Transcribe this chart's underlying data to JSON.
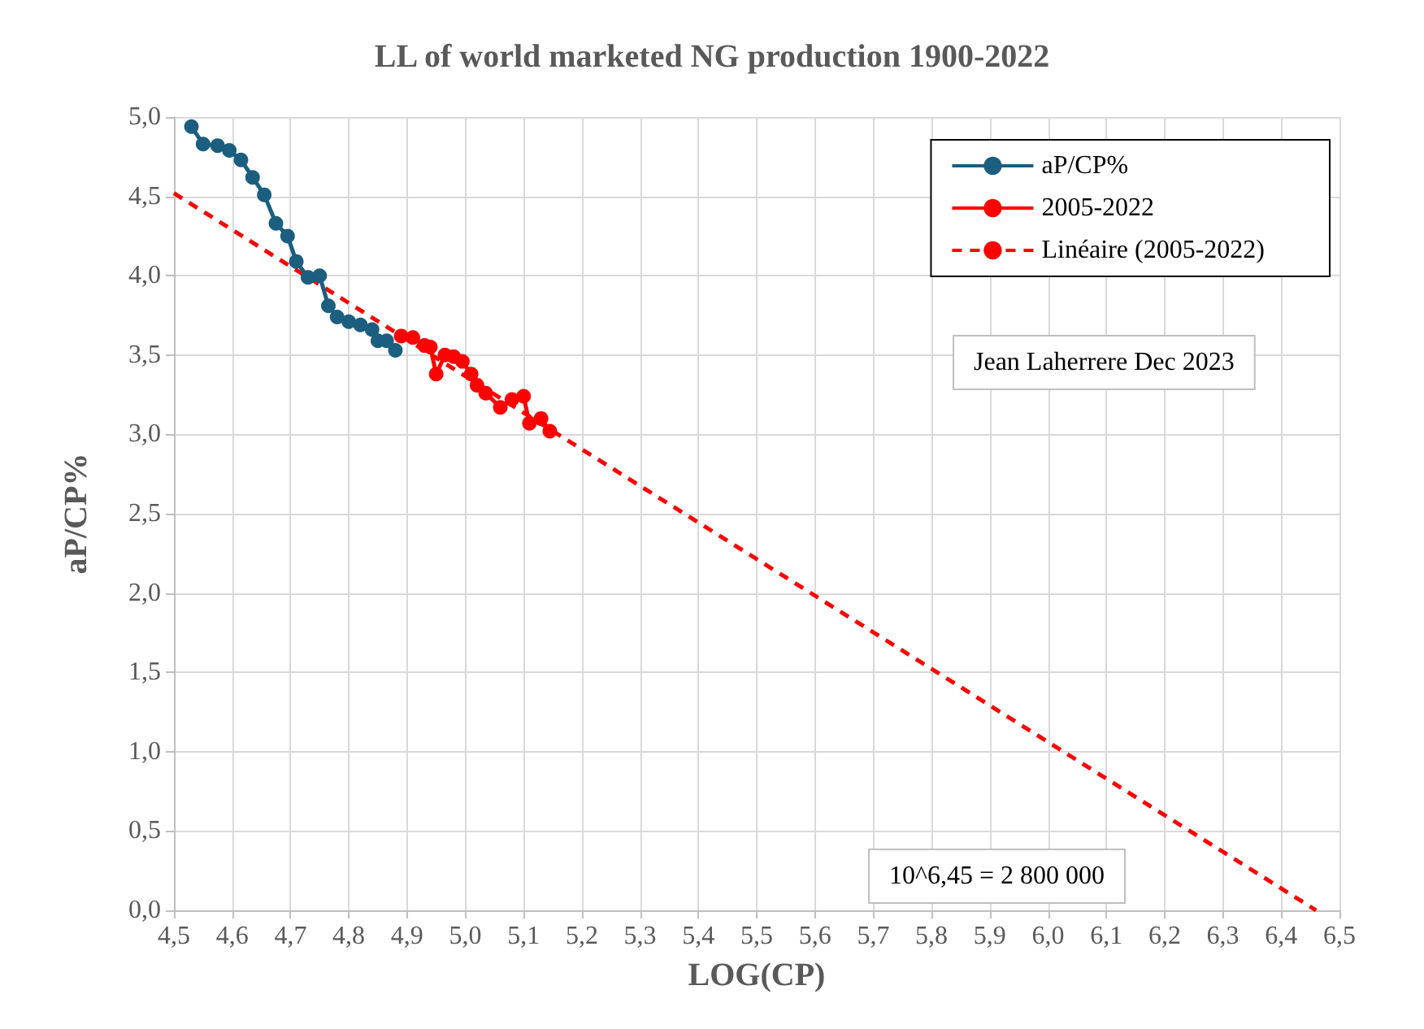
{
  "chart_data": {
    "type": "line",
    "title": "LL of world marketed NG production 1900-2022",
    "xlabel": "LOG(CP)",
    "ylabel": "aP/CP%",
    "xlim": [
      4.5,
      6.5
    ],
    "ylim": [
      0,
      5
    ],
    "xticks": [
      {
        "value": 4.5,
        "label": "4,5"
      },
      {
        "value": 4.6,
        "label": "4,6"
      },
      {
        "value": 4.7,
        "label": "4,7"
      },
      {
        "value": 4.8,
        "label": "4,8"
      },
      {
        "value": 4.9,
        "label": "4,9"
      },
      {
        "value": 5.0,
        "label": "5,0"
      },
      {
        "value": 5.1,
        "label": "5,1"
      },
      {
        "value": 5.2,
        "label": "5,2"
      },
      {
        "value": 5.3,
        "label": "5,3"
      },
      {
        "value": 5.4,
        "label": "5,4"
      },
      {
        "value": 5.5,
        "label": "5,5"
      },
      {
        "value": 5.6,
        "label": "5,6"
      },
      {
        "value": 5.7,
        "label": "5,7"
      },
      {
        "value": 5.8,
        "label": "5,8"
      },
      {
        "value": 5.9,
        "label": "5,9"
      },
      {
        "value": 6.0,
        "label": "6,0"
      },
      {
        "value": 6.1,
        "label": "6,1"
      },
      {
        "value": 6.2,
        "label": "6,2"
      },
      {
        "value": 6.3,
        "label": "6,3"
      },
      {
        "value": 6.4,
        "label": "6,4"
      },
      {
        "value": 6.5,
        "label": "6,5"
      }
    ],
    "yticks": [
      {
        "value": 0,
        "label": "0,0"
      },
      {
        "value": 0.5,
        "label": "0,5"
      },
      {
        "value": 1.0,
        "label": "1,0"
      },
      {
        "value": 1.5,
        "label": "1,5"
      },
      {
        "value": 2.0,
        "label": "2,0"
      },
      {
        "value": 2.5,
        "label": "2,5"
      },
      {
        "value": 3.0,
        "label": "3,0"
      },
      {
        "value": 3.5,
        "label": "3,5"
      },
      {
        "value": 4.0,
        "label": "4,0"
      },
      {
        "value": 4.5,
        "label": "4,5"
      },
      {
        "value": 5.0,
        "label": "5,0"
      }
    ],
    "grid": true,
    "legend": "top right",
    "marker": "circle",
    "series": [
      {
        "name": "aP/CP%",
        "color": "#1b5e80",
        "x": [
          4.53,
          4.55,
          4.575,
          4.595,
          4.615,
          4.635,
          4.655,
          4.675,
          4.695,
          4.71,
          4.73,
          4.75,
          4.765,
          4.78,
          4.8,
          4.82,
          4.84,
          4.85,
          4.865,
          4.88
        ],
        "values": [
          4.94,
          4.83,
          4.82,
          4.79,
          4.73,
          4.62,
          4.51,
          4.33,
          4.25,
          4.09,
          3.99,
          4.0,
          3.81,
          3.74,
          3.71,
          3.69,
          3.66,
          3.59,
          3.59,
          3.53
        ]
      },
      {
        "name": "2005-2022",
        "color": "#ff0000",
        "x": [
          4.89,
          4.91,
          4.93,
          4.94,
          4.95,
          4.965,
          4.98,
          4.995,
          5.01,
          5.02,
          5.035,
          5.06,
          5.08,
          5.1,
          5.11,
          5.13,
          5.145
        ],
        "values": [
          3.62,
          3.61,
          3.56,
          3.55,
          3.38,
          3.5,
          3.49,
          3.46,
          3.38,
          3.31,
          3.26,
          3.17,
          3.22,
          3.24,
          3.07,
          3.1,
          3.02
        ]
      },
      {
        "name": "Linéaire (2005-2022)",
        "color": "#ff0000",
        "marker": "none",
        "line_style": "dashed",
        "x": [
          4.5,
          6.46
        ],
        "values": [
          4.52,
          0.0
        ]
      }
    ],
    "annotations": [
      "Jean Laherrere Dec 2023",
      "10^6,45 = 2 800 000"
    ]
  }
}
